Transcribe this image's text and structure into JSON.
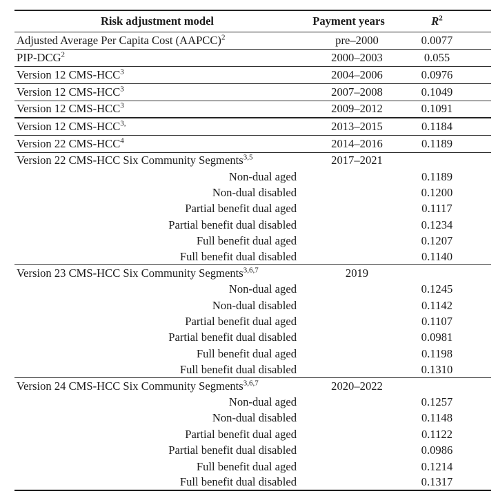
{
  "colors": {
    "text": "#1b1b1b",
    "rule": "#232323",
    "background": "#ffffff"
  },
  "table": {
    "headers": {
      "model": "Risk adjustment model",
      "years": "Payment years",
      "r2_base": "R",
      "r2_sup": "2"
    },
    "rows": [
      {
        "model": "Adjusted Average Per Capita Cost (AAPCC)",
        "sup": "2",
        "years": "pre–2000",
        "r2": "0.0077",
        "kind": "model",
        "rule": "thin"
      },
      {
        "model": "PIP-DCG",
        "sup": "2",
        "years": "2000–2003",
        "r2": "0.055",
        "kind": "model",
        "rule": "thin"
      },
      {
        "model": "Version 12 CMS-HCC",
        "sup": "3",
        "years": "2004–2006",
        "r2": "0.0976",
        "kind": "model",
        "rule": "thin"
      },
      {
        "model": "Version 12 CMS-HCC",
        "sup": "3",
        "years": "2007–2008",
        "r2": "0.1049",
        "kind": "model",
        "rule": "thin"
      },
      {
        "model": "Version 12 CMS-HCC",
        "sup": "3",
        "years": "2009–2012",
        "r2": "0.1091",
        "kind": "model",
        "rule": "medium"
      },
      {
        "model": "Version 12 CMS-HCC",
        "sup": "3,",
        "years": "2013–2015",
        "r2": "0.1184",
        "kind": "model",
        "rule": "thin"
      },
      {
        "model": "Version 22 CMS-HCC",
        "sup": "4",
        "years": "2014–2016",
        "r2": "0.1189",
        "kind": "model",
        "rule": "thin"
      },
      {
        "model": "Version 22 CMS-HCC Six Community Segments",
        "sup": "3,5",
        "years": "2017–2021",
        "r2": "",
        "kind": "section",
        "rule": "none"
      },
      {
        "model": "Non-dual aged",
        "sup": "",
        "years": "",
        "r2": "0.1189",
        "kind": "sub",
        "rule": "none"
      },
      {
        "model": "Non-dual disabled",
        "sup": "",
        "years": "",
        "r2": "0.1200",
        "kind": "sub",
        "rule": "none"
      },
      {
        "model": "Partial benefit dual aged",
        "sup": "",
        "years": "",
        "r2": "0.1117",
        "kind": "sub",
        "rule": "none"
      },
      {
        "model": "Partial benefit dual disabled",
        "sup": "",
        "years": "",
        "r2": "0.1234",
        "kind": "sub",
        "rule": "none"
      },
      {
        "model": "Full benefit dual aged",
        "sup": "",
        "years": "",
        "r2": "0.1207",
        "kind": "sub",
        "rule": "none"
      },
      {
        "model": "Full benefit dual disabled",
        "sup": "",
        "years": "",
        "r2": "0.1140",
        "kind": "sub",
        "rule": "thin"
      },
      {
        "model": "Version 23 CMS-HCC Six Community Segments",
        "sup": "3,6,7",
        "years": "2019",
        "r2": "",
        "kind": "section",
        "rule": "none"
      },
      {
        "model": "Non-dual aged",
        "sup": "",
        "years": "",
        "r2": "0.1245",
        "kind": "sub",
        "rule": "none"
      },
      {
        "model": "Non-dual disabled",
        "sup": "",
        "years": "",
        "r2": "0.1142",
        "kind": "sub",
        "rule": "none"
      },
      {
        "model": "Partial benefit dual aged",
        "sup": "",
        "years": "",
        "r2": "0.1107",
        "kind": "sub",
        "rule": "none"
      },
      {
        "model": "Partial benefit dual disabled",
        "sup": "",
        "years": "",
        "r2": "0.0981",
        "kind": "sub",
        "rule": "none"
      },
      {
        "model": "Full benefit dual aged",
        "sup": "",
        "years": "",
        "r2": "0.1198",
        "kind": "sub",
        "rule": "none"
      },
      {
        "model": "Full benefit dual disabled",
        "sup": "",
        "years": "",
        "r2": "0.1310",
        "kind": "sub",
        "rule": "thin"
      },
      {
        "model": "Version 24 CMS-HCC Six Community Segments",
        "sup": "3,6,7",
        "years": "2020–2022",
        "r2": "",
        "kind": "section",
        "rule": "none"
      },
      {
        "model": "Non-dual aged",
        "sup": "",
        "years": "",
        "r2": "0.1257",
        "kind": "sub",
        "rule": "none"
      },
      {
        "model": "Non-dual disabled",
        "sup": "",
        "years": "",
        "r2": "0.1148",
        "kind": "sub",
        "rule": "none"
      },
      {
        "model": "Partial benefit dual aged",
        "sup": "",
        "years": "",
        "r2": "0.1122",
        "kind": "sub",
        "rule": "none"
      },
      {
        "model": "Partial benefit dual disabled",
        "sup": "",
        "years": "",
        "r2": "0.0986",
        "kind": "sub",
        "rule": "none"
      },
      {
        "model": "Full benefit dual aged",
        "sup": "",
        "years": "",
        "r2": "0.1214",
        "kind": "sub",
        "rule": "none"
      },
      {
        "model": "Full benefit dual disabled",
        "sup": "",
        "years": "",
        "r2": "0.1317",
        "kind": "sub",
        "rule": "thick"
      }
    ]
  }
}
